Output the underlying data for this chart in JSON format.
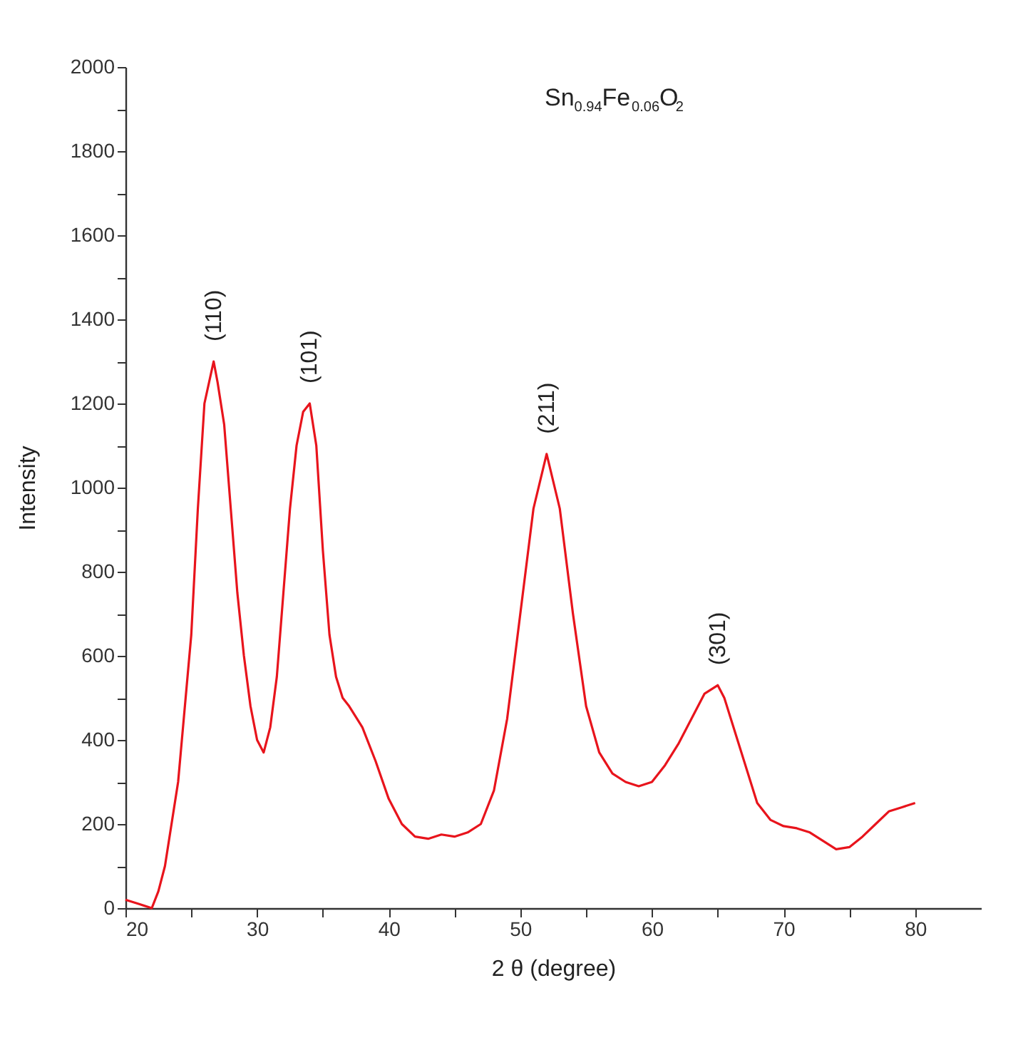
{
  "chart_data": {
    "type": "line",
    "xlabel": "2 θ (degree)",
    "ylabel": "Intensity",
    "annotations": [
      "Sn$_{0.94}$Fe$_{0.06}$O$_{2}$",
      {
        "text": "(110)",
        "x": 26.7,
        "y": 1300
      },
      {
        "text": "(101)",
        "x": 34,
        "y": 1200
      },
      {
        "text": "(211)",
        "x": 52,
        "y": 1080
      },
      {
        "text": "(301)",
        "x": 65,
        "y": 530
      }
    ],
    "x": [
      20,
      21,
      22,
      22.5,
      23,
      24,
      25,
      25.5,
      26,
      26.7,
      27,
      27.5,
      28,
      28.5,
      29,
      29.5,
      30,
      30.5,
      31,
      31.5,
      32,
      32.5,
      33,
      33.5,
      34,
      34.5,
      35,
      35.5,
      36,
      36.5,
      37,
      38,
      39,
      40,
      41,
      42,
      43,
      44,
      45,
      46,
      47,
      48,
      49,
      50,
      51,
      52,
      53,
      54,
      55,
      56,
      57,
      58,
      59,
      60,
      61,
      62,
      63,
      64,
      65,
      65.5,
      66,
      67,
      68,
      69,
      70,
      71,
      72,
      73,
      74,
      75,
      76,
      77,
      78,
      79,
      80
    ],
    "series": [
      {
        "color": "#e8141c",
        "values": [
          20,
          10,
          0,
          40,
          100,
          300,
          650,
          950,
          1200,
          1300,
          1250,
          1150,
          950,
          750,
          600,
          480,
          400,
          370,
          430,
          550,
          750,
          950,
          1100,
          1180,
          1200,
          1100,
          850,
          650,
          550,
          500,
          480,
          430,
          350,
          260,
          200,
          170,
          165,
          175,
          170,
          180,
          200,
          280,
          450,
          700,
          950,
          1080,
          950,
          700,
          480,
          370,
          320,
          300,
          290,
          300,
          340,
          390,
          450,
          510,
          530,
          500,
          450,
          350,
          250,
          210,
          195,
          190,
          180,
          160,
          140,
          145,
          170,
          200,
          230,
          240,
          250
        ]
      }
    ],
    "xlim": [
      20,
      85
    ],
    "xticks": [
      20,
      {
        "value": 25,
        "label": null
      },
      30,
      {
        "value": 35,
        "label": null
      },
      40,
      {
        "value": 45,
        "label": null
      },
      50,
      {
        "value": 55,
        "label": null
      },
      60,
      {
        "value": 65,
        "label": null
      },
      70,
      {
        "value": 75,
        "label": null
      },
      80
    ],
    "ylim": [
      0,
      2000
    ],
    "yticks": [
      0,
      {
        "value": 100,
        "label": null
      },
      200,
      {
        "value": 300,
        "label": null
      },
      400,
      {
        "value": 500,
        "label": null
      },
      600,
      {
        "value": 700,
        "label": null
      },
      800,
      {
        "value": 900,
        "label": null
      },
      1000,
      {
        "value": 1100,
        "label": null
      },
      1200,
      {
        "value": 1300,
        "label": null
      },
      1400,
      {
        "value": 1500,
        "label": null
      },
      1600,
      {
        "value": 1700,
        "label": null
      },
      1800,
      {
        "value": 1900,
        "label": null
      },
      2000
    ],
    "grid": false,
    "marker": "none",
    "line_style": "solid"
  }
}
